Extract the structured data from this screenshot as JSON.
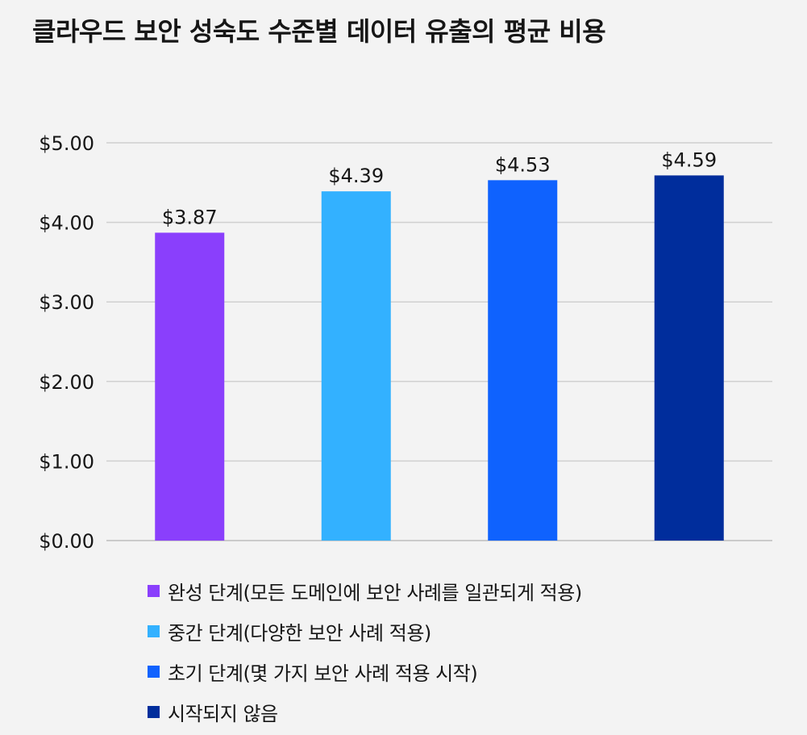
{
  "chart_data": {
    "type": "bar",
    "title": "클라우드 보안 성숙도 수준별 데이터 유출의 평균 비용",
    "categories": [
      "완성 단계(모든 도메인에 보안 사례를 일관되게 적용)",
      "중간 단계(다양한 보안 사례 적용)",
      "초기 단계(몇 가지 보안 사례 적용 시작)",
      "시작되지 않음"
    ],
    "values": [
      3.87,
      4.39,
      4.53,
      4.59
    ],
    "value_labels": [
      "$3.87",
      "$4.39",
      "$4.53",
      "$4.59"
    ],
    "colors": [
      "#8a3ffc",
      "#33b1ff",
      "#0f62fe",
      "#002d9c"
    ],
    "ylim": [
      0,
      5
    ],
    "yticks": [
      0,
      1,
      2,
      3,
      4,
      5
    ],
    "ytick_labels": [
      "$0.00",
      "$1.00",
      "$2.00",
      "$3.00",
      "$4.00",
      "$5.00"
    ],
    "grid": true,
    "legend_position": "bottom"
  }
}
